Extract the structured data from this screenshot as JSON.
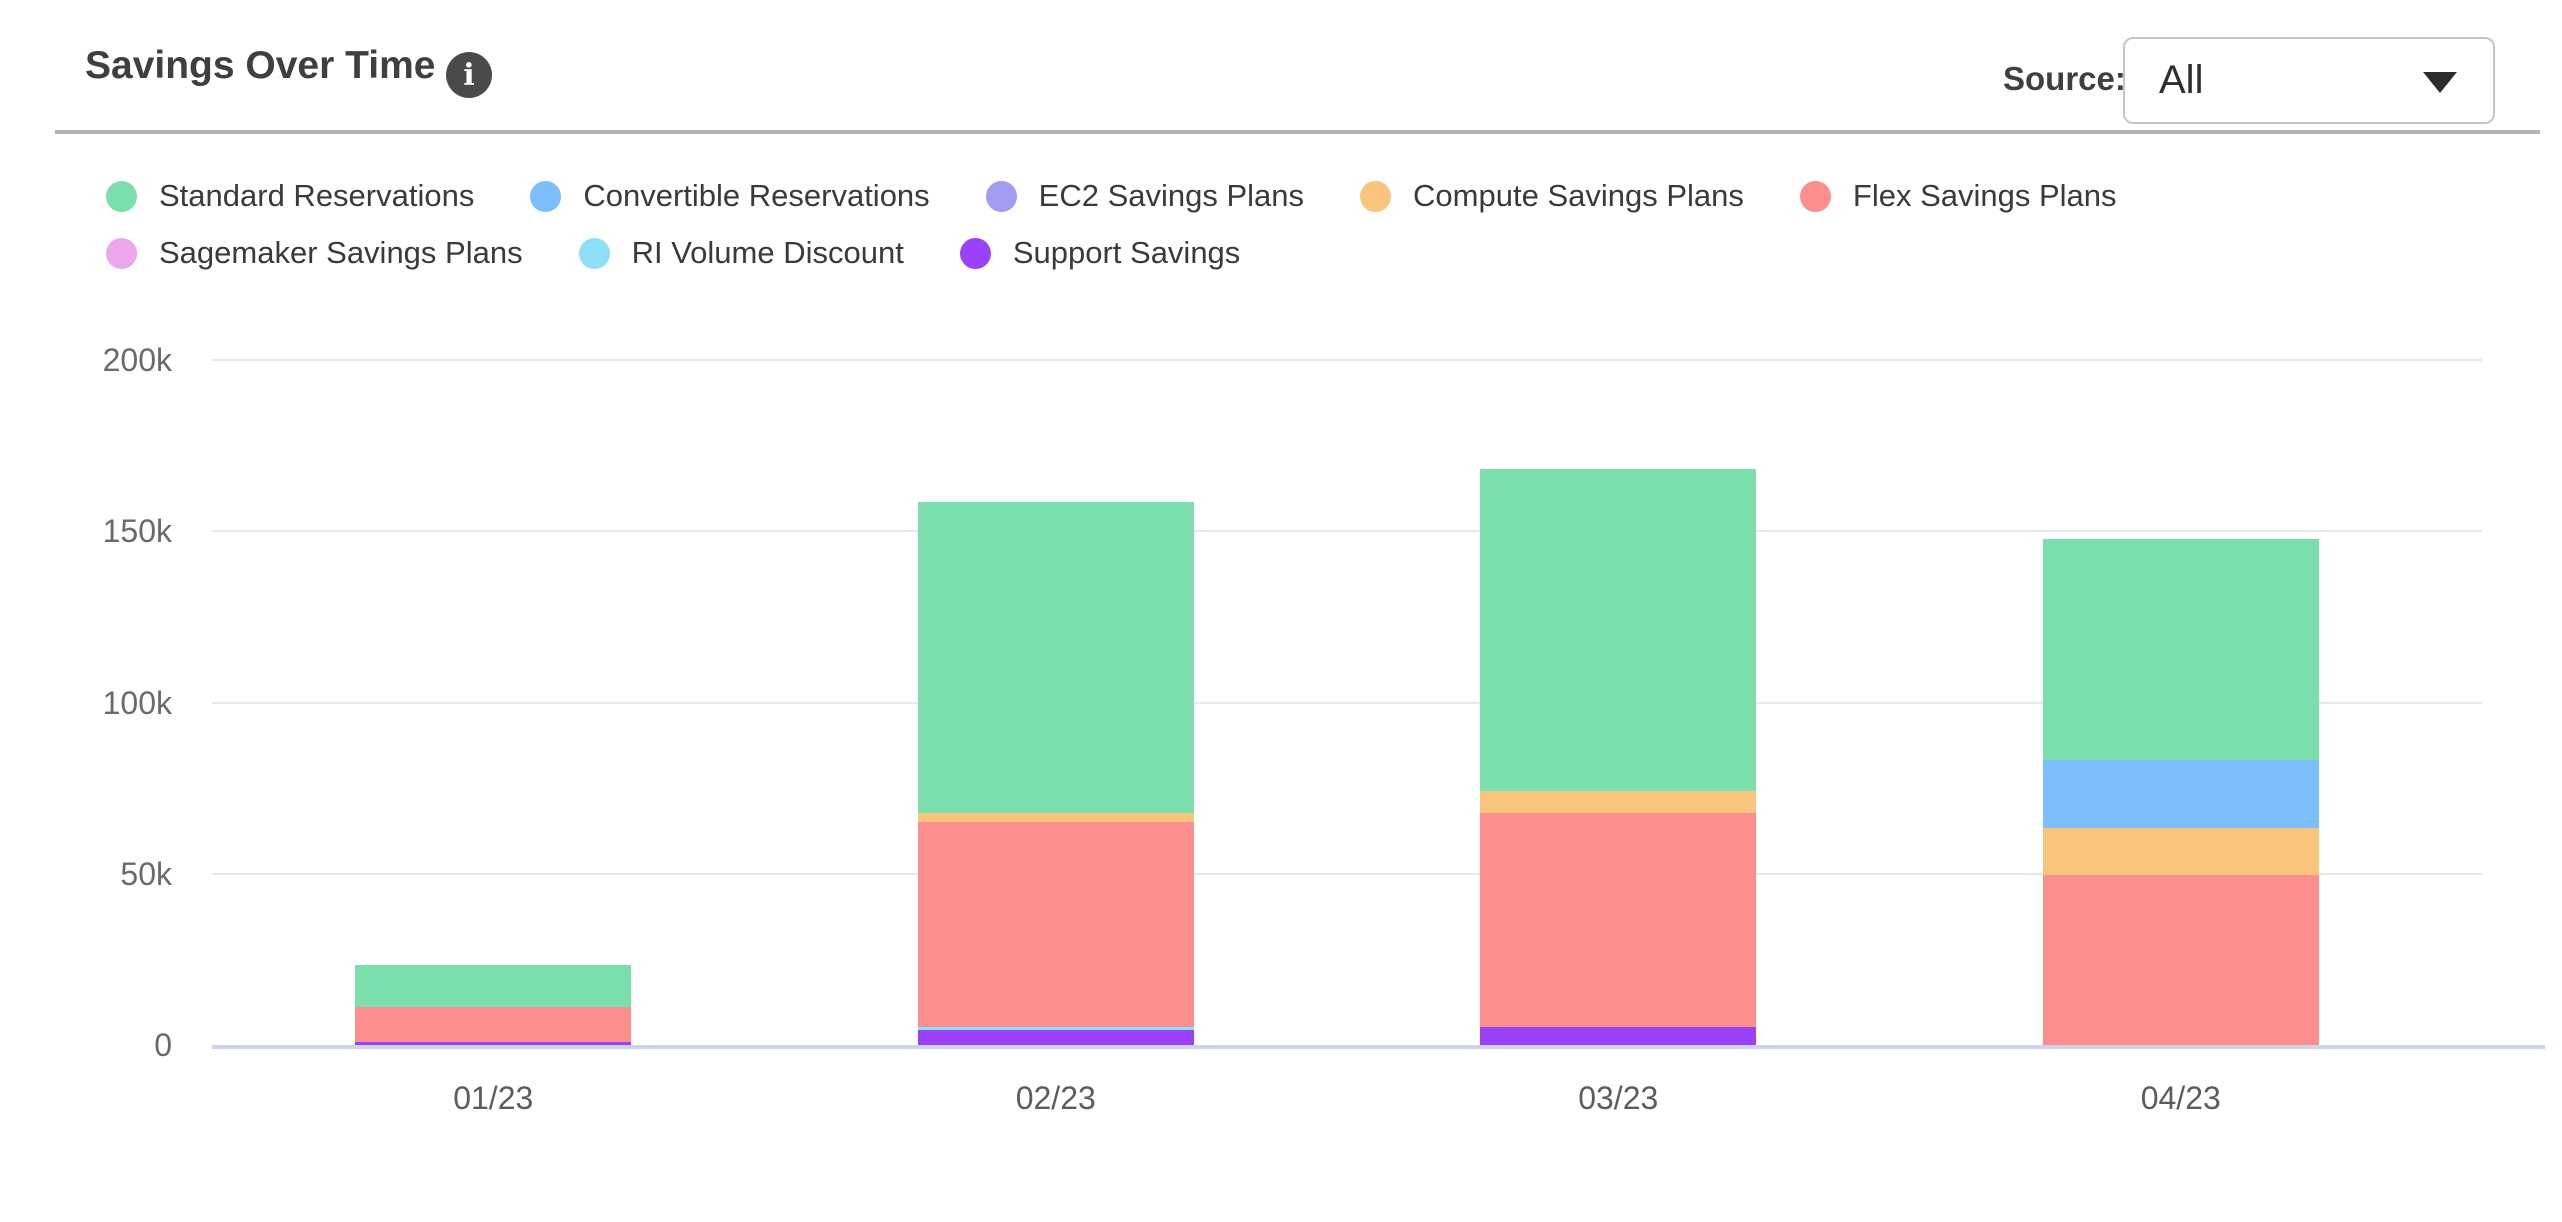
{
  "header": {
    "title": "Savings Over Time",
    "info_glyph": "i",
    "source_label": "Source:",
    "source_value": "All"
  },
  "legend": {
    "rows": [
      [
        {
          "label": "Standard Reservations",
          "color": "#7adfac"
        },
        {
          "label": "Convertible Reservations",
          "color": "#7cbdfc"
        },
        {
          "label": "EC2 Savings Plans",
          "color": "#a29bf2"
        },
        {
          "label": "Compute Savings Plans",
          "color": "#f9c57d"
        },
        {
          "label": "Flex Savings Plans",
          "color": "#fc8e8e"
        }
      ],
      [
        {
          "label": "Sagemaker Savings Plans",
          "color": "#eba6ec"
        },
        {
          "label": "RI Volume Discount",
          "color": "#8ce1f4"
        },
        {
          "label": "Support Savings",
          "color": "#9b42f8"
        }
      ]
    ]
  },
  "chart_data": {
    "type": "bar",
    "stacked": true,
    "title": "Savings Over Time",
    "xlabel": "",
    "ylabel": "",
    "categories": [
      "01/23",
      "02/23",
      "03/23",
      "04/23"
    ],
    "series": [
      {
        "name": "Standard Reservations",
        "color": "#7adfac",
        "values": [
          12400,
          90600,
          94000,
          64400
        ]
      },
      {
        "name": "Convertible Reservations",
        "color": "#7cbdfc",
        "values": [
          0,
          0,
          0,
          19700
        ]
      },
      {
        "name": "EC2 Savings Plans",
        "color": "#a29bf2",
        "values": [
          0,
          0,
          0,
          0
        ]
      },
      {
        "name": "Compute Savings Plans",
        "color": "#f9c57d",
        "values": [
          0,
          2600,
          6500,
          14000
        ]
      },
      {
        "name": "Flex Savings Plans",
        "color": "#fc8e8e",
        "values": [
          10300,
          59900,
          62400,
          49500
        ]
      },
      {
        "name": "Sagemaker Savings Plans",
        "color": "#eba6ec",
        "values": [
          0,
          0,
          0,
          0
        ]
      },
      {
        "name": "RI Volume Discount",
        "color": "#8ce1f4",
        "values": [
          0,
          900,
          0,
          0
        ]
      },
      {
        "name": "Support Savings",
        "color": "#9b42f8",
        "values": [
          800,
          4400,
          5300,
          0
        ]
      }
    ],
    "stack_order_bottom_to_top": [
      "Support Savings",
      "RI Volume Discount",
      "Sagemaker Savings Plans",
      "Flex Savings Plans",
      "Compute Savings Plans",
      "EC2 Savings Plans",
      "Convertible Reservations",
      "Standard Reservations"
    ],
    "y_ticks": [
      "0",
      "50k",
      "100k",
      "150k",
      "200k"
    ],
    "y_tick_values": [
      0,
      50000,
      100000,
      150000,
      200000
    ],
    "ylim": [
      0,
      200000
    ],
    "grid": true,
    "legend_position": "top",
    "colors": {
      "grid": "#e8e8e8",
      "axis_line": "#ccd3ea",
      "tick_text": "#6a6a6a"
    }
  }
}
